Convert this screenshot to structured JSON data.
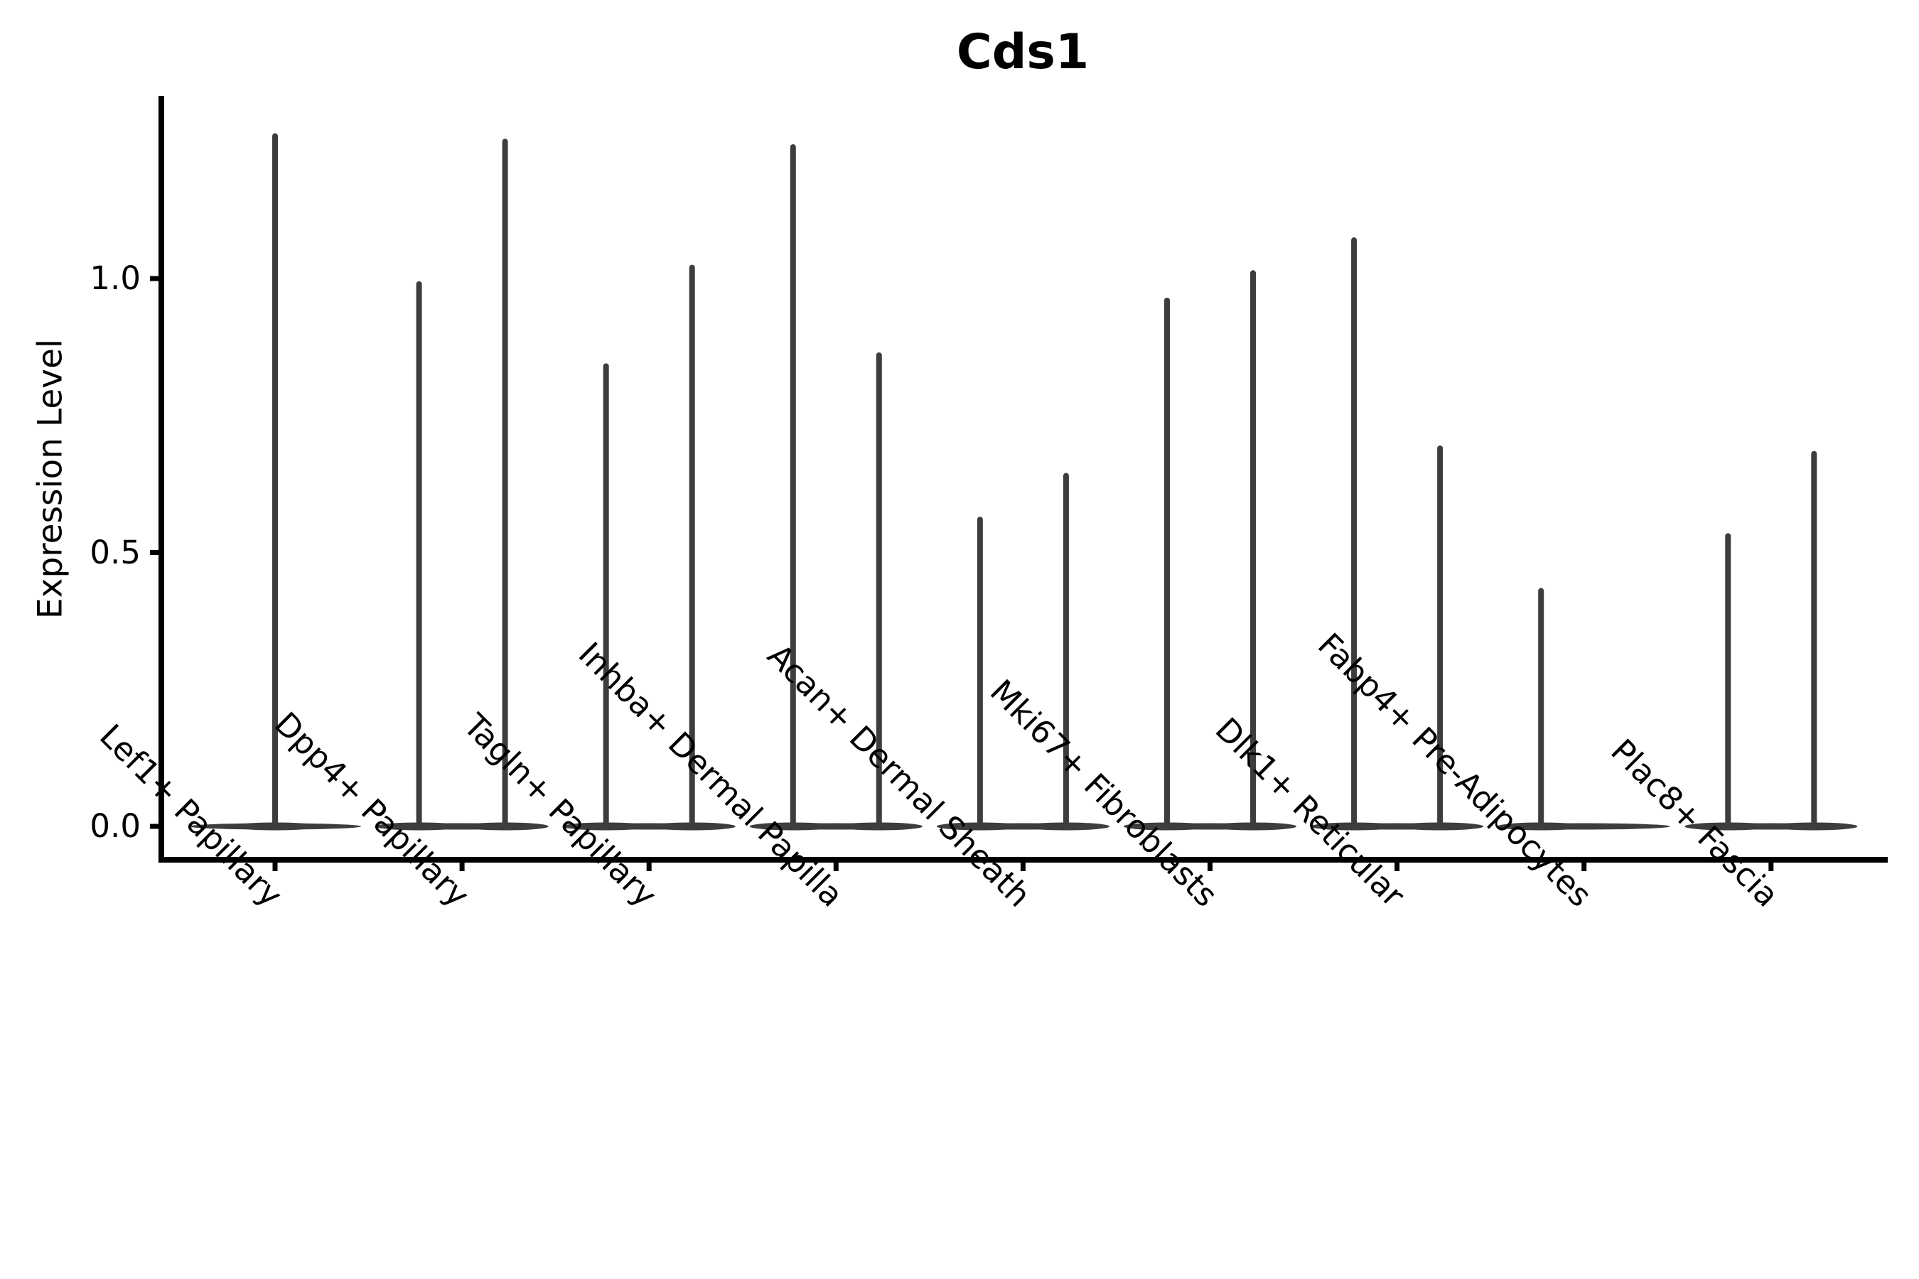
{
  "chart_data": {
    "type": "violin",
    "title": "Cds1",
    "xlabel": "",
    "ylabel": "Expression Level",
    "categories": [
      "Lef1+ Papillary",
      "Dpp4+ Papillary",
      "Tagln+ Papillary",
      "Inhba+ Dermal Papilla",
      "Acan+ Dermal Sheath",
      "Mki67+ Fibroblasts",
      "Dlk1+ Reticular",
      "Fabp4+ Pre-Adipocytes",
      "Plac8+ Fascia"
    ],
    "ytick_labels": [
      "0.0",
      "0.5",
      "1.0"
    ],
    "ytick_values": [
      0.0,
      0.5,
      1.0
    ],
    "ylim": [
      -0.06,
      1.33
    ],
    "grid": false,
    "legend": null,
    "violin_color": "#3d3d3d",
    "axis_color": "#000000",
    "body_halfwidth_frac": 0.46,
    "violins": [
      {
        "category": "Lef1+ Papillary",
        "spikes": [
          {
            "offset_frac": 0.0,
            "max": 1.26
          }
        ]
      },
      {
        "category": "Dpp4+ Papillary",
        "spikes": [
          {
            "offset_frac": -0.23,
            "max": 0.99
          },
          {
            "offset_frac": 0.23,
            "max": 1.25
          }
        ]
      },
      {
        "category": "Tagln+ Papillary",
        "spikes": [
          {
            "offset_frac": -0.23,
            "max": 0.84
          },
          {
            "offset_frac": 0.23,
            "max": 1.02
          }
        ]
      },
      {
        "category": "Inhba+ Dermal Papilla",
        "spikes": [
          {
            "offset_frac": -0.23,
            "max": 1.24
          },
          {
            "offset_frac": 0.23,
            "max": 0.86
          }
        ]
      },
      {
        "category": "Acan+ Dermal Sheath",
        "spikes": [
          {
            "offset_frac": -0.23,
            "max": 0.56
          },
          {
            "offset_frac": 0.23,
            "max": 0.64
          }
        ]
      },
      {
        "category": "Mki67+ Fibroblasts",
        "spikes": [
          {
            "offset_frac": -0.23,
            "max": 0.96
          },
          {
            "offset_frac": 0.23,
            "max": 1.01
          }
        ]
      },
      {
        "category": "Dlk1+ Reticular",
        "spikes": [
          {
            "offset_frac": -0.23,
            "max": 1.07
          },
          {
            "offset_frac": 0.23,
            "max": 0.69
          }
        ]
      },
      {
        "category": "Fabp4+ Pre-Adipocytes",
        "spikes": [
          {
            "offset_frac": -0.23,
            "max": 0.43
          }
        ]
      },
      {
        "category": "Plac8+ Fascia",
        "spikes": [
          {
            "offset_frac": -0.23,
            "max": 0.53
          },
          {
            "offset_frac": 0.23,
            "max": 0.68
          }
        ]
      }
    ]
  }
}
